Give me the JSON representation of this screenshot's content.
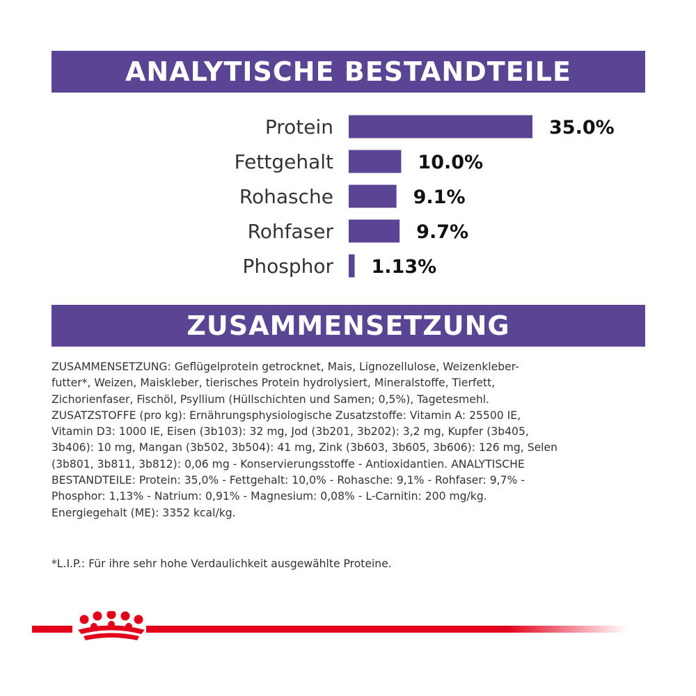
{
  "sections": {
    "analytic_title": "ANALYTISCHE BESTANDTEILE",
    "composition_title": "ZUSAMMENSETZUNG"
  },
  "chart_data": {
    "type": "bar",
    "orientation": "horizontal",
    "categories": [
      "Protein",
      "Fettgehalt",
      "Rohasche",
      "Rohfaser",
      "Phosphor"
    ],
    "values": [
      35.0,
      10.0,
      9.1,
      9.7,
      1.13
    ],
    "value_labels": [
      "35.0%",
      "10.0%",
      "9.1%",
      "9.7%",
      "1.13%"
    ],
    "xlim": [
      0,
      35
    ],
    "grid": false
  },
  "composition": {
    "lines": [
      "ZUSAMMENSETZUNG: Geflügelprotein getrocknet, Mais, Lignozellulose, Weizenkleber-",
      "futter*, Weizen, Maiskleber, tierisches Protein hydrolysiert, Mineralstoffe, Tierfett,",
      "Zichorienfaser, Fischöl, Psyllium (Hüllschichten und Samen; 0,5%), Tagetesmehl.",
      "ZUSATZSTOFFE (pro kg): Ernährungsphysiologische Zusatzstoffe: Vitamin A: 25500 IE,",
      "Vitamin D3: 1000 IE, Eisen (3b103): 32 mg, Jod (3b201, 3b202): 3,2 mg, Kupfer (3b405,",
      "3b406): 10 mg, Mangan (3b502, 3b504): 41 mg, Zink (3b603, 3b605, 3b606): 126 mg, Selen",
      "(3b801, 3b811, 3b812): 0,06 mg - Konservierungsstoffe - Antioxidantien. ANALYTISCHE",
      "BESTANDTEILE: Protein: 35,0% - Fettgehalt: 10,0% - Rohasche: 9,1% - Rohfaser: 9,7% -",
      "Phosphor: 1,13% - Natrium: 0,91% - Magnesium: 0,08% - L-Carnitin: 200 mg/kg.",
      "Energiegehalt (ME): 3352 kcal/kg."
    ],
    "footnote": "*L.I.P.: Für ihre sehr hohe Verdaulichkeit ausgewählte Proteine."
  },
  "colors": {
    "band": "#5a4594",
    "bar": "#5a4594",
    "brand_red": "#e2001a"
  },
  "brand": {
    "icon": "crown-icon"
  }
}
